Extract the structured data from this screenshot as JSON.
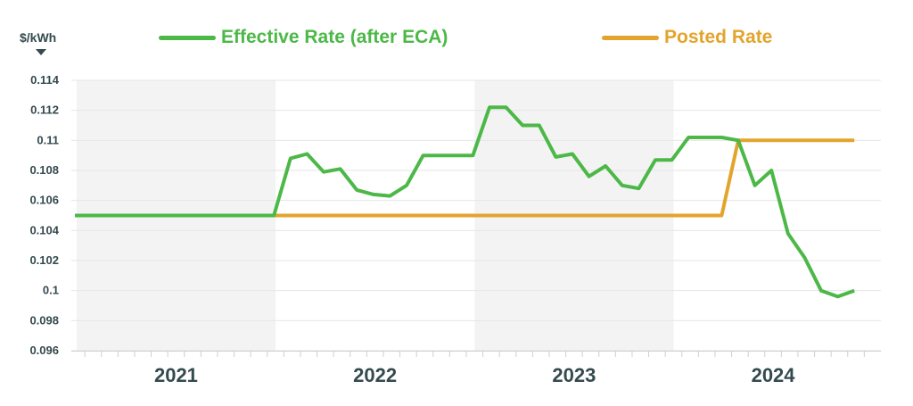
{
  "unit_label": "$/kWh",
  "colors": {
    "effective": "#4cb847",
    "posted": "#e3a42d",
    "axis_text": "#344a4e",
    "band": "#f3f3f3",
    "grid": "#e6e6e6"
  },
  "chart_data": {
    "type": "line",
    "ylim": [
      0.096,
      0.114
    ],
    "y_ticks": [
      "0.114",
      "0.112",
      "0.11",
      "0.108",
      "0.106",
      "0.104",
      "0.102",
      "0.1",
      "0.098",
      "0.096"
    ],
    "year_labels": [
      "2021",
      "2022",
      "2023",
      "2024"
    ],
    "shaded_years": [
      "2021",
      "2023"
    ],
    "grid": true,
    "legend_position": "top",
    "x_months": [
      "2021-01",
      "2021-02",
      "2021-03",
      "2021-04",
      "2021-05",
      "2021-06",
      "2021-07",
      "2021-08",
      "2021-09",
      "2021-10",
      "2021-11",
      "2021-12",
      "2022-01",
      "2022-02",
      "2022-03",
      "2022-04",
      "2022-05",
      "2022-06",
      "2022-07",
      "2022-08",
      "2022-09",
      "2022-10",
      "2022-11",
      "2022-12",
      "2023-01",
      "2023-02",
      "2023-03",
      "2023-04",
      "2023-05",
      "2023-06",
      "2023-07",
      "2023-08",
      "2023-09",
      "2023-10",
      "2023-11",
      "2023-12",
      "2024-01",
      "2024-02",
      "2024-03",
      "2024-04",
      "2024-05",
      "2024-06",
      "2024-07",
      "2024-08",
      "2024-09",
      "2024-10",
      "2024-11",
      "2024-12"
    ],
    "series": [
      {
        "name": "Effective Rate (after ECA)",
        "values": [
          0.105,
          0.105,
          0.105,
          0.105,
          0.105,
          0.105,
          0.105,
          0.105,
          0.105,
          0.105,
          0.105,
          0.105,
          0.105,
          0.1088,
          0.1091,
          0.1079,
          0.1081,
          0.1067,
          0.1064,
          0.1063,
          0.107,
          0.109,
          0.109,
          0.109,
          0.109,
          0.1122,
          0.1122,
          0.111,
          0.111,
          0.1089,
          0.1091,
          0.1076,
          0.1083,
          0.107,
          0.1068,
          0.1087,
          0.1087,
          0.1102,
          0.1102,
          0.1102,
          0.11,
          0.107,
          0.108,
          0.1038,
          0.1022,
          0.1,
          0.0996,
          0.1
        ]
      },
      {
        "name": "Posted Rate",
        "values": [
          0.105,
          0.105,
          0.105,
          0.105,
          0.105,
          0.105,
          0.105,
          0.105,
          0.105,
          0.105,
          0.105,
          0.105,
          0.105,
          0.105,
          0.105,
          0.105,
          0.105,
          0.105,
          0.105,
          0.105,
          0.105,
          0.105,
          0.105,
          0.105,
          0.105,
          0.105,
          0.105,
          0.105,
          0.105,
          0.105,
          0.105,
          0.105,
          0.105,
          0.105,
          0.105,
          0.105,
          0.105,
          0.105,
          0.105,
          0.105,
          0.11,
          0.11,
          0.11,
          0.11,
          0.11,
          0.11,
          0.11,
          0.11
        ]
      }
    ]
  }
}
